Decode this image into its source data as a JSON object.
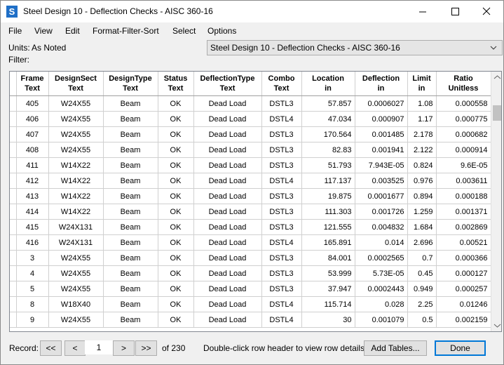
{
  "title_bar": {
    "icon_letter": "S",
    "title": "Steel Design 10 - Deflection Checks - AISC 360-16"
  },
  "menu": [
    "File",
    "View",
    "Edit",
    "Format-Filter-Sort",
    "Select",
    "Options"
  ],
  "units_label": "Units:",
  "units_value": "As Noted",
  "filter_label": "Filter:",
  "table_selector": "Steel Design 10 - Deflection Checks - AISC 360-16",
  "table": {
    "columns": [
      {
        "name": "Frame",
        "unit": "Text"
      },
      {
        "name": "DesignSect",
        "unit": "Text"
      },
      {
        "name": "DesignType",
        "unit": "Text"
      },
      {
        "name": "Status",
        "unit": "Text"
      },
      {
        "name": "DeflectionType",
        "unit": "Text"
      },
      {
        "name": "Combo",
        "unit": "Text"
      },
      {
        "name": "Location",
        "unit": "in"
      },
      {
        "name": "Deflection",
        "unit": "in"
      },
      {
        "name": "Limit",
        "unit": "in"
      },
      {
        "name": "Ratio",
        "unit": "Unitless"
      }
    ],
    "rows": [
      [
        "405",
        "W24X55",
        "Beam",
        "OK",
        "Dead Load",
        "DSTL3",
        "57.857",
        "0.0006027",
        "1.08",
        "0.000558"
      ],
      [
        "406",
        "W24X55",
        "Beam",
        "OK",
        "Dead Load",
        "DSTL4",
        "47.034",
        "0.000907",
        "1.17",
        "0.000775"
      ],
      [
        "407",
        "W24X55",
        "Beam",
        "OK",
        "Dead Load",
        "DSTL3",
        "170.564",
        "0.001485",
        "2.178",
        "0.000682"
      ],
      [
        "408",
        "W24X55",
        "Beam",
        "OK",
        "Dead Load",
        "DSTL3",
        "82.83",
        "0.001941",
        "2.122",
        "0.000914"
      ],
      [
        "411",
        "W14X22",
        "Beam",
        "OK",
        "Dead Load",
        "DSTL3",
        "51.793",
        "7.943E-05",
        "0.824",
        "9.6E-05"
      ],
      [
        "412",
        "W14X22",
        "Beam",
        "OK",
        "Dead Load",
        "DSTL4",
        "117.137",
        "0.003525",
        "0.976",
        "0.003611"
      ],
      [
        "413",
        "W14X22",
        "Beam",
        "OK",
        "Dead Load",
        "DSTL3",
        "19.875",
        "0.0001677",
        "0.894",
        "0.000188"
      ],
      [
        "414",
        "W14X22",
        "Beam",
        "OK",
        "Dead Load",
        "DSTL3",
        "111.303",
        "0.001726",
        "1.259",
        "0.001371"
      ],
      [
        "415",
        "W24X131",
        "Beam",
        "OK",
        "Dead Load",
        "DSTL3",
        "121.555",
        "0.004832",
        "1.684",
        "0.002869"
      ],
      [
        "416",
        "W24X131",
        "Beam",
        "OK",
        "Dead Load",
        "DSTL4",
        "165.891",
        "0.014",
        "2.696",
        "0.00521"
      ],
      [
        "3",
        "W24X55",
        "Beam",
        "OK",
        "Dead Load",
        "DSTL3",
        "84.001",
        "0.0002565",
        "0.7",
        "0.000366"
      ],
      [
        "4",
        "W24X55",
        "Beam",
        "OK",
        "Dead Load",
        "DSTL3",
        "53.999",
        "5.73E-05",
        "0.45",
        "0.000127"
      ],
      [
        "5",
        "W24X55",
        "Beam",
        "OK",
        "Dead Load",
        "DSTL3",
        "37.947",
        "0.0002443",
        "0.949",
        "0.000257"
      ],
      [
        "8",
        "W18X40",
        "Beam",
        "OK",
        "Dead Load",
        "DSTL4",
        "115.714",
        "0.028",
        "2.25",
        "0.01246"
      ],
      [
        "9",
        "W24X55",
        "Beam",
        "OK",
        "Dead Load",
        "DSTL4",
        "30",
        "0.001079",
        "0.5",
        "0.002159"
      ]
    ]
  },
  "footer": {
    "record_label": "Record:",
    "first": "<<",
    "prev": "<",
    "current": "1",
    "next": ">",
    "last": ">>",
    "of_total": "of 230",
    "hint": "Double-click row header to view row details.",
    "add_tables": "Add Tables...",
    "done": "Done"
  }
}
